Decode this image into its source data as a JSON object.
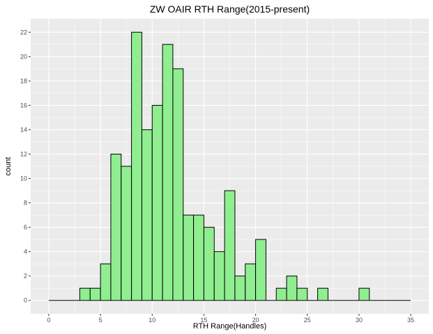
{
  "chart_data": {
    "type": "bar",
    "title": "ZW OAIR RTH Range(2015-present)",
    "xlabel": "RTH Range(Handles)",
    "ylabel": "count",
    "xlim": [
      -1.75,
      36.75
    ],
    "ylim": [
      -1.1,
      23.1
    ],
    "x_ticks": [
      0,
      5,
      10,
      15,
      20,
      25,
      30,
      35
    ],
    "y_ticks": [
      0,
      2,
      4,
      6,
      8,
      10,
      12,
      14,
      16,
      18,
      20,
      22
    ],
    "bin_width": 1,
    "bins_start": 0,
    "values": [
      0,
      0,
      0,
      1,
      1,
      3,
      12,
      11,
      22,
      14,
      16,
      21,
      19,
      7,
      7,
      6,
      4,
      9,
      2,
      3,
      5,
      0,
      1,
      2,
      1,
      0,
      1,
      0,
      0,
      0,
      1,
      0,
      0,
      0,
      0
    ],
    "grid": true,
    "colors": {
      "panel_background": "#ebebeb",
      "grid": "#ffffff",
      "bar_fill": "#90ee90",
      "bar_outline": "#000000"
    }
  }
}
